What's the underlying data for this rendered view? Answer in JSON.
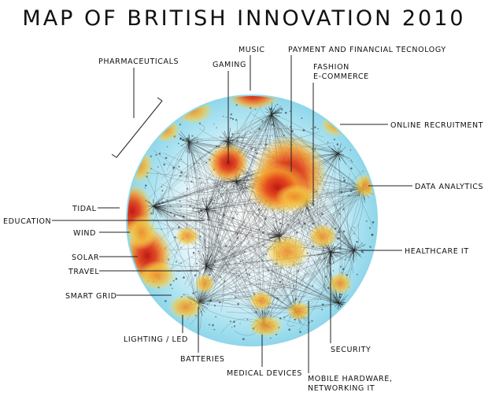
{
  "title": "MAP OF BRITISH INNOVATION 2010",
  "labels": {
    "pharmaceuticals": "PHARMACEUTICALS",
    "gaming": "GAMING",
    "music": "MUSIC",
    "payment": "PAYMENT AND FINANCIAL TECNOLOGY",
    "fashion": "FASHION\nE-COMMERCE",
    "online_recruitment": "ONLINE RECRUITMENT",
    "data_analytics": "DATA ANALYTICS",
    "healthcare_it": "HEALTHCARE IT",
    "security": "SECURITY",
    "mobile_hardware": "MOBILE HARDWARE,\nNETWORKING IT",
    "medical_devices": "MEDICAL DEVICES",
    "batteries": "BATTERIES",
    "lighting": "LIGHTING / LED",
    "smart_grid": "SMART GRID",
    "travel": "TRAVEL",
    "solar": "SOLAR",
    "wind": "WIND",
    "education": "EDUCATION",
    "tidal": "TIDAL"
  },
  "colors": {
    "sphere_base": "#ffffff",
    "sphere_tint": "#9fdff0",
    "heat_low": "#f4d34a",
    "heat_mid": "#f08a2a",
    "heat_high": "#c42018",
    "network": "#3a3a3a"
  }
}
